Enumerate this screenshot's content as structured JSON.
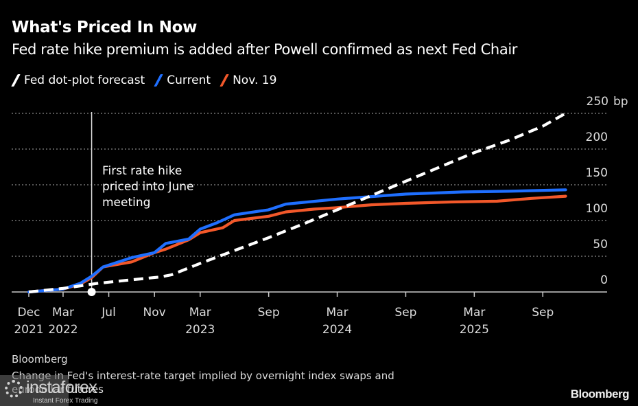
{
  "header": {
    "title": "What's Priced In Now",
    "subtitle": "Fed rate hike premium is added after Powell confirmed as next Fed Chair"
  },
  "legend": [
    {
      "label": "Fed dot-plot forecast",
      "color": "#ffffff",
      "style": "dashed"
    },
    {
      "label": "Current",
      "color": "#1f6fff",
      "style": "solid"
    },
    {
      "label": "Nov. 19",
      "color": "#f2582a",
      "style": "solid"
    }
  ],
  "annotation": {
    "lines": [
      "First rate hike",
      "priced into June",
      "meeting"
    ],
    "marker_month_index": 5.5
  },
  "footer": {
    "source": "Bloomberg",
    "note_line1": "Change in Fed's interest-rate target implied by overnight index swaps and",
    "note_line2": "eurodollar futures",
    "brand": "Bloomberg",
    "watermark_logo": "instaforex",
    "watermark_tagline": "Instant Forex Trading"
  },
  "chart_data": {
    "type": "line",
    "title": "What's Priced In Now",
    "subtitle": "Fed rate hike premium is added after Powell confirmed as next Fed Chair",
    "xlabel": "",
    "ylabel": "bp",
    "x_unit": "months since Dec 2021",
    "xlim": [
      0,
      47
    ],
    "ylim": [
      0,
      250
    ],
    "grid": true,
    "legend_position": "top-left",
    "y_ticks": [
      {
        "value": 250,
        "label": "250 bp"
      },
      {
        "value": 200,
        "label": "200"
      },
      {
        "value": 150,
        "label": "150"
      },
      {
        "value": 100,
        "label": "100"
      },
      {
        "value": 50,
        "label": "50"
      },
      {
        "value": 0,
        "label": "0"
      }
    ],
    "x_ticks": [
      {
        "value": 0,
        "line1": "Dec",
        "line2": "2021"
      },
      {
        "value": 3,
        "line1": "Mar",
        "line2": "2022"
      },
      {
        "value": 7,
        "line1": "Jul",
        "line2": ""
      },
      {
        "value": 11,
        "line1": "Nov",
        "line2": ""
      },
      {
        "value": 15,
        "line1": "Mar",
        "line2": "2023"
      },
      {
        "value": 21,
        "line1": "Sep",
        "line2": ""
      },
      {
        "value": 27,
        "line1": "Mar",
        "line2": "2024"
      },
      {
        "value": 33,
        "line1": "Sep",
        "line2": ""
      },
      {
        "value": 39,
        "line1": "Mar",
        "line2": "2025"
      },
      {
        "value": 45,
        "line1": "Sep",
        "line2": ""
      }
    ],
    "series": [
      {
        "name": "Fed dot-plot forecast",
        "color": "#ffffff",
        "dashed": true,
        "x": [
          0,
          3,
          6,
          9,
          11.5,
          12.5,
          15,
          18,
          21,
          24,
          27,
          30,
          33,
          36,
          39,
          42,
          45,
          47
        ],
        "values": [
          0,
          5,
          12,
          17,
          21,
          24,
          40,
          58,
          76,
          95,
          115,
          135,
          155,
          175,
          195,
          212,
          232,
          250
        ]
      },
      {
        "name": "Current",
        "color": "#1f6fff",
        "dashed": false,
        "x": [
          0,
          3,
          4.5,
          5.5,
          6.5,
          9,
          11,
          12,
          14,
          15,
          16.5,
          18,
          21,
          22.5,
          27,
          33,
          38,
          42,
          47
        ],
        "values": [
          0,
          4,
          12,
          22,
          35,
          48,
          55,
          68,
          74,
          88,
          97,
          108,
          115,
          123,
          130,
          137,
          140,
          141,
          143
        ]
      },
      {
        "name": "Nov. 19",
        "color": "#f2582a",
        "dashed": false,
        "x": [
          0,
          3,
          4.5,
          5.5,
          6.5,
          9,
          11,
          12,
          14,
          15,
          17,
          18,
          21,
          22.5,
          25,
          27,
          30,
          33,
          37,
          41,
          44,
          47
        ],
        "values": [
          0,
          4,
          11,
          20,
          35,
          42,
          55,
          60,
          73,
          83,
          90,
          100,
          106,
          112,
          116,
          118,
          122,
          124,
          126,
          127,
          131,
          134
        ]
      }
    ]
  }
}
